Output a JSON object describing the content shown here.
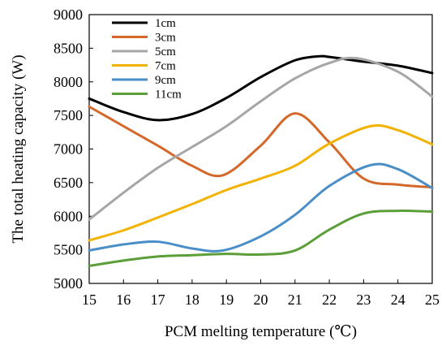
{
  "chart_data": {
    "type": "line",
    "title": "",
    "xlabel": "PCM melting temperature (℃)",
    "ylabel": "The total heating capacity (W)",
    "xlim": [
      15,
      25
    ],
    "ylim": [
      5000,
      9000
    ],
    "xticks": [
      15,
      16,
      17,
      18,
      19,
      20,
      21,
      22,
      23,
      24,
      25
    ],
    "yticks": [
      5000,
      5500,
      6000,
      6500,
      7000,
      7500,
      8000,
      8500,
      9000
    ],
    "grid": false,
    "legend_position": "top-left",
    "series": [
      {
        "name": "1cm",
        "color": "#000000",
        "x": [
          15,
          16,
          17,
          18,
          19,
          20,
          21,
          21.7,
          22,
          23,
          24,
          25
        ],
        "y": [
          7750,
          7550,
          7430,
          7520,
          7760,
          8070,
          8320,
          8380,
          8370,
          8300,
          8240,
          8130
        ]
      },
      {
        "name": "3cm",
        "color": "#d4682a",
        "x": [
          15,
          16,
          17,
          18,
          18.9,
          20,
          21,
          22,
          23,
          24,
          25
        ],
        "y": [
          7630,
          7340,
          7050,
          6750,
          6610,
          7050,
          7530,
          7100,
          6560,
          6470,
          6430
        ]
      },
      {
        "name": "5cm",
        "color": "#a6a6a6",
        "x": [
          15,
          16,
          17,
          18,
          19,
          20,
          21,
          22,
          22.8,
          24,
          25
        ],
        "y": [
          5950,
          6350,
          6720,
          7030,
          7340,
          7710,
          8050,
          8280,
          8350,
          8150,
          7780
        ]
      },
      {
        "name": "7cm",
        "color": "#f2b300",
        "x": [
          15,
          16,
          17,
          18,
          19,
          20,
          21,
          22,
          23.2,
          24,
          25
        ],
        "y": [
          5640,
          5790,
          5980,
          6180,
          6390,
          6560,
          6750,
          7080,
          7340,
          7280,
          7070
        ]
      },
      {
        "name": "9cm",
        "color": "#4a8ec8",
        "x": [
          15,
          16,
          17,
          18,
          18.9,
          20,
          21,
          22,
          23.2,
          24,
          25
        ],
        "y": [
          5490,
          5580,
          5620,
          5520,
          5490,
          5700,
          6020,
          6450,
          6760,
          6700,
          6420
        ]
      },
      {
        "name": "11cm",
        "color": "#5b9e3a",
        "x": [
          15,
          16,
          17,
          18,
          19,
          20,
          21,
          22,
          23,
          24,
          25
        ],
        "y": [
          5260,
          5340,
          5400,
          5420,
          5440,
          5430,
          5490,
          5800,
          6040,
          6080,
          6070
        ]
      }
    ]
  }
}
